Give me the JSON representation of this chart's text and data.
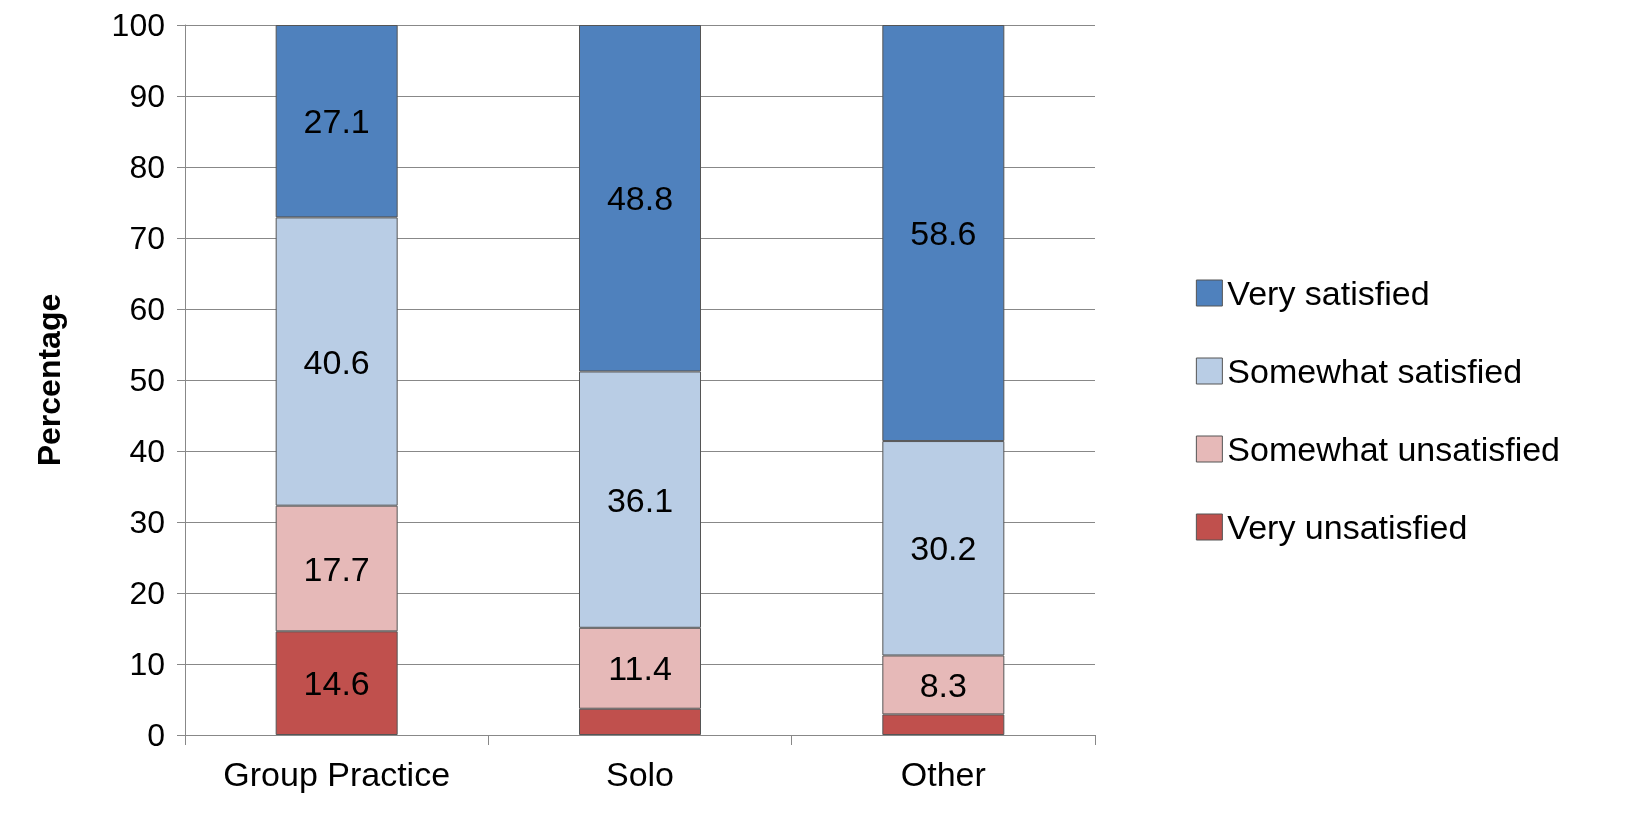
{
  "chart_data": {
    "type": "bar",
    "stacked": true,
    "ylabel": "Percentage",
    "categories": [
      "Group Practice",
      "Solo",
      "Other"
    ],
    "series": [
      {
        "name": "Very unsatisfied",
        "color": "#c0504d",
        "values": [
          14.6,
          3.7,
          2.9
        ],
        "value_labels": [
          "14.6",
          null,
          null
        ]
      },
      {
        "name": "Somewhat unsatisfied",
        "color": "#e6b9b8",
        "values": [
          17.7,
          11.4,
          8.3
        ],
        "value_labels": [
          "17.7",
          "11.4",
          "8.3"
        ]
      },
      {
        "name": "Somewhat satisfied",
        "color": "#b9cde5",
        "values": [
          40.6,
          36.1,
          30.2
        ],
        "value_labels": [
          "40.6",
          "36.1",
          "30.2"
        ]
      },
      {
        "name": "Very satisfied",
        "color": "#4f81bd",
        "values": [
          27.1,
          48.8,
          58.6
        ],
        "value_labels": [
          "27.1",
          "48.8",
          "58.6"
        ]
      }
    ],
    "ylim": [
      0,
      100
    ],
    "yticks": [
      0,
      10,
      20,
      30,
      40,
      50,
      60,
      70,
      80,
      90,
      100
    ],
    "grid": "y",
    "legend": "right"
  }
}
